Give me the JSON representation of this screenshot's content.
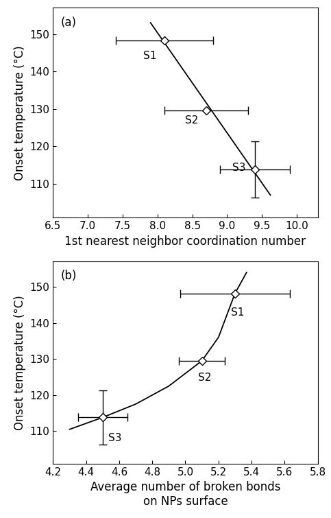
{
  "chart_data": [
    {
      "type": "scatter",
      "title": "(a)",
      "x_label": "1st nearest neighbor coordination number",
      "y_label": "Onset temperature (°C)",
      "labels": [
        "S1",
        "S2",
        "S3"
      ],
      "x": [
        8.1,
        8.7,
        9.4
      ],
      "values": [
        148.2,
        129.5,
        113.8
      ],
      "xerr": [
        0.7,
        0.6,
        0.5
      ],
      "yerr": [
        null,
        null,
        7.5
      ],
      "fit": {
        "x": [
          7.9,
          9.62
        ],
        "y": [
          153,
          107
        ]
      },
      "color": "#000000",
      "marker": "diamond",
      "xlim": [
        6.5,
        10.3
      ],
      "xticks": [
        6.5,
        7.0,
        7.5,
        8.0,
        8.5,
        9.0,
        9.5,
        10.0
      ],
      "ylim": [
        101,
        157
      ],
      "yticks": [
        110,
        120,
        130,
        140,
        150
      ]
    },
    {
      "type": "scatter",
      "title": "(b)",
      "x_label": "Average number of broken bonds\non NPs surface",
      "y_label": "Onset temperature (°C)",
      "labels": [
        "S1",
        "S2",
        "S3"
      ],
      "x": [
        5.3,
        5.1,
        4.5
      ],
      "values": [
        148.2,
        129.5,
        113.8
      ],
      "xerr": [
        0.33,
        0.14,
        0.15
      ],
      "yerr": [
        null,
        null,
        7.5
      ],
      "fit": {
        "x": [
          4.3,
          4.5,
          4.7,
          4.9,
          5.1,
          5.2,
          5.3,
          5.37
        ],
        "y": [
          110.5,
          113.8,
          117.5,
          122.5,
          129.5,
          136,
          148.2,
          154
        ]
      },
      "color": "#000000",
      "marker": "diamond",
      "xlim": [
        4.2,
        5.8
      ],
      "xticks": [
        4.2,
        4.4,
        4.6,
        4.8,
        5.0,
        5.2,
        5.4,
        5.6,
        5.8
      ],
      "ylim": [
        101,
        157
      ],
      "yticks": [
        110,
        120,
        130,
        140,
        150
      ]
    }
  ]
}
